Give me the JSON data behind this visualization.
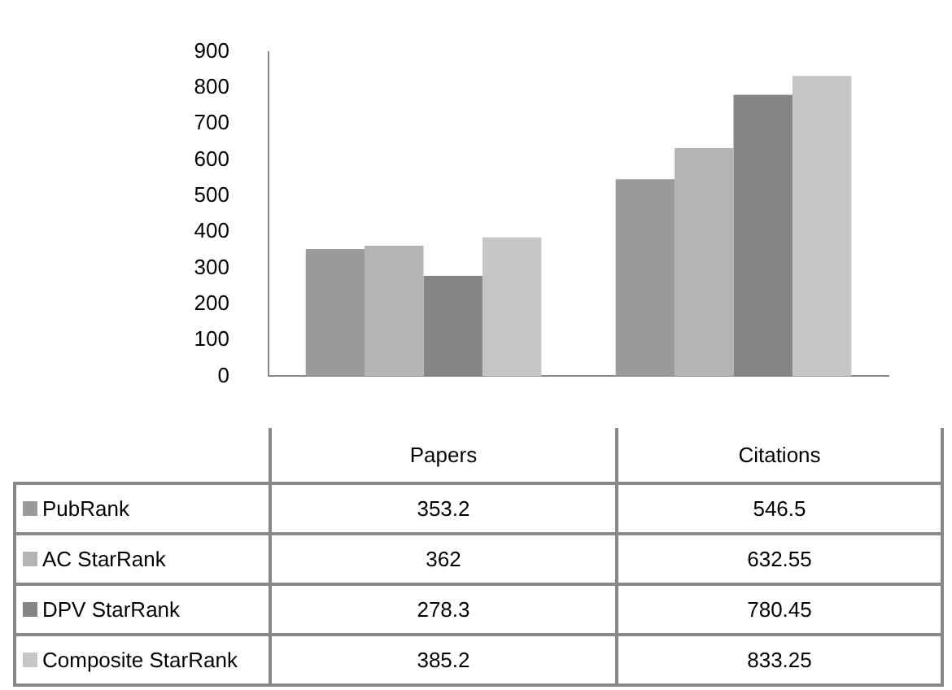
{
  "chart_data": {
    "type": "bar",
    "categories": [
      "Papers",
      "Citations"
    ],
    "series": [
      {
        "name": "PubRank",
        "color": "#9a9a9a",
        "values": [
          353.2,
          546.5
        ]
      },
      {
        "name": "AC StarRank",
        "color": "#b4b4b4",
        "values": [
          362,
          632.55
        ]
      },
      {
        "name": "DPV StarRank",
        "color": "#858585",
        "values": [
          278.3,
          780.45
        ]
      },
      {
        "name": "Composite StarRank",
        "color": "#c6c6c6",
        "values": [
          385.2,
          833.25
        ]
      }
    ],
    "ylim": [
      0,
      900
    ],
    "yticks": [
      0,
      100,
      200,
      300,
      400,
      500,
      600,
      700,
      800,
      900
    ],
    "data_labels": true,
    "legend": "bottom",
    "grid": false
  }
}
